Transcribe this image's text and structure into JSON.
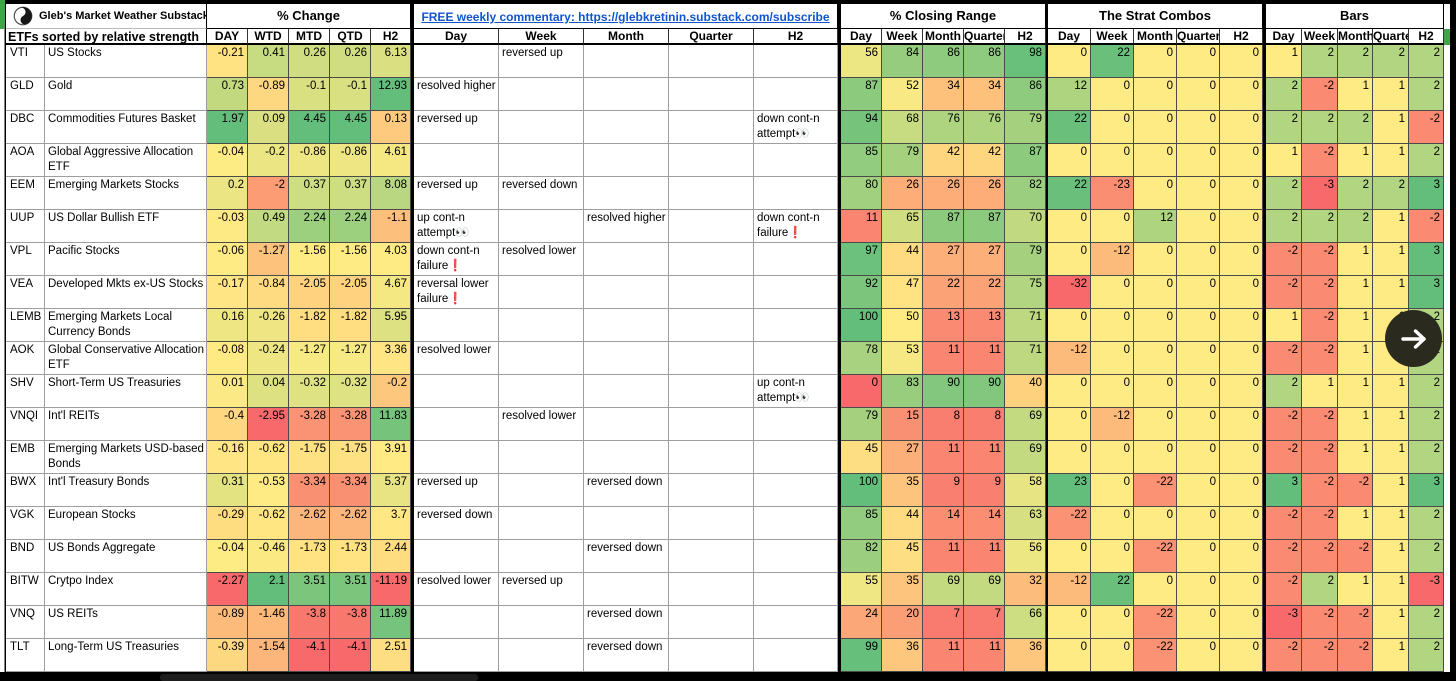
{
  "brand": {
    "title": "Gleb's Market Weather Substack",
    "subtitle": "ETFs sorted by relative strength",
    "logo_icon": "yin-yang-icon"
  },
  "link": {
    "label": "FREE weekly commentary: https://glebkretinin.substack.com/subscribe",
    "color": "#1155CC"
  },
  "nav": {
    "arrow_icon": "right-arrow-icon"
  },
  "heatmap_colors": {
    "low": "#F8696B",
    "mid": "#FFEB84",
    "high": "#63BE7B",
    "corner_green": "#44A248"
  },
  "groups": [
    {
      "id": "pct_change",
      "title": "% Change",
      "columns": [
        "DAY",
        "WTD",
        "MTD",
        "QTD",
        "H2"
      ],
      "scale": "per-column-median"
    },
    {
      "id": "commentary",
      "title": "",
      "columns": [
        "Day",
        "Week",
        "Month",
        "Quarter",
        "H2"
      ]
    },
    {
      "id": "closing_range",
      "title": "% Closing Range",
      "columns": [
        "Day",
        "Week",
        "Month",
        "Quarter",
        "H2"
      ],
      "scale": {
        "min": 0,
        "mid": 50,
        "max": 100
      }
    },
    {
      "id": "strat_combos",
      "title": "The Strat Combos",
      "columns": [
        "Day",
        "Week",
        "Month",
        "Quarter",
        "H2"
      ],
      "scale": {
        "min": -32,
        "mid": 0,
        "max": 23
      }
    },
    {
      "id": "bars",
      "title": "Bars",
      "columns": [
        "Day",
        "Week",
        "Month",
        "Quarter",
        "H2"
      ],
      "scale": {
        "min": -3,
        "mid": 1,
        "max": 3
      }
    }
  ],
  "rows": [
    {
      "ticker": "VTI",
      "name": "US Stocks",
      "pct_change": [
        -0.21,
        0.41,
        0.26,
        0.26,
        6.13
      ],
      "commentary": [
        "",
        "reversed up",
        "",
        "",
        ""
      ],
      "closing_range": [
        56,
        84,
        86,
        86,
        98
      ],
      "strat_combos": [
        0,
        22,
        0,
        0,
        0
      ],
      "bars": [
        1,
        2,
        2,
        2,
        2
      ]
    },
    {
      "ticker": "GLD",
      "name": "Gold",
      "pct_change": [
        0.73,
        -0.89,
        -0.1,
        -0.1,
        12.93
      ],
      "commentary": [
        "resolved higher",
        "",
        "",
        "",
        ""
      ],
      "closing_range": [
        87,
        52,
        34,
        34,
        86
      ],
      "strat_combos": [
        12,
        0,
        0,
        0,
        0
      ],
      "bars": [
        2,
        -2,
        1,
        1,
        2
      ]
    },
    {
      "ticker": "DBC",
      "name": "Commodities Futures Basket",
      "pct_change": [
        1.97,
        0.09,
        4.45,
        4.45,
        0.13
      ],
      "commentary": [
        "reversed up",
        "",
        "",
        "",
        "down cont-n attempt👀"
      ],
      "closing_range": [
        94,
        68,
        76,
        76,
        79
      ],
      "strat_combos": [
        22,
        0,
        0,
        0,
        0
      ],
      "bars": [
        2,
        2,
        2,
        1,
        -2
      ]
    },
    {
      "ticker": "AOA",
      "name": "Global Aggressive Allocation ETF",
      "pct_change": [
        -0.04,
        -0.2,
        -0.86,
        -0.86,
        4.61
      ],
      "commentary": [
        "",
        "",
        "",
        "",
        ""
      ],
      "closing_range": [
        85,
        79,
        42,
        42,
        87
      ],
      "strat_combos": [
        0,
        0,
        0,
        0,
        0
      ],
      "bars": [
        1,
        -2,
        1,
        1,
        2
      ]
    },
    {
      "ticker": "EEM",
      "name": "Emerging Markets Stocks",
      "pct_change": [
        0.2,
        -2,
        0.37,
        0.37,
        8.08
      ],
      "commentary": [
        "reversed up",
        "reversed down",
        "",
        "",
        ""
      ],
      "closing_range": [
        80,
        26,
        26,
        26,
        82
      ],
      "strat_combos": [
        22,
        -23,
        0,
        0,
        0
      ],
      "bars": [
        2,
        -3,
        2,
        2,
        3
      ]
    },
    {
      "ticker": "UUP",
      "name": "US Dollar Bullish ETF",
      "pct_change": [
        -0.03,
        0.49,
        2.24,
        2.24,
        -1.1
      ],
      "commentary": [
        "up cont-n attempt👀",
        "",
        "resolved higher",
        "",
        "down cont-n failure❗"
      ],
      "closing_range": [
        11,
        65,
        87,
        87,
        70
      ],
      "strat_combos": [
        0,
        0,
        12,
        0,
        0
      ],
      "bars": [
        2,
        2,
        2,
        1,
        -2
      ]
    },
    {
      "ticker": "VPL",
      "name": "Pacific Stocks",
      "pct_change": [
        -0.06,
        -1.27,
        -1.56,
        -1.56,
        4.03
      ],
      "commentary": [
        "down cont-n failure❗",
        "resolved lower",
        "",
        "",
        ""
      ],
      "closing_range": [
        97,
        44,
        27,
        27,
        79
      ],
      "strat_combos": [
        0,
        -12,
        0,
        0,
        0
      ],
      "bars": [
        -2,
        -2,
        1,
        1,
        3
      ]
    },
    {
      "ticker": "VEA",
      "name": "Developed Mkts ex-US Stocks",
      "pct_change": [
        -0.17,
        -0.84,
        -2.05,
        -2.05,
        4.67
      ],
      "commentary": [
        "reversal lower failure❗",
        "",
        "",
        "",
        ""
      ],
      "closing_range": [
        92,
        47,
        22,
        22,
        75
      ],
      "strat_combos": [
        -32,
        0,
        0,
        0,
        0
      ],
      "bars": [
        -2,
        -2,
        1,
        1,
        3
      ]
    },
    {
      "ticker": "LEMB",
      "name": "Emerging Markets Local Currency Bonds",
      "pct_change": [
        0.16,
        -0.26,
        -1.82,
        -1.82,
        5.95
      ],
      "commentary": [
        "",
        "",
        "",
        "",
        ""
      ],
      "closing_range": [
        100,
        50,
        13,
        13,
        71
      ],
      "strat_combos": [
        0,
        0,
        0,
        0,
        0
      ],
      "bars": [
        1,
        -2,
        1,
        1,
        2
      ]
    },
    {
      "ticker": "AOK",
      "name": "Global Conservative Allocation ETF",
      "pct_change": [
        -0.08,
        -0.24,
        -1.27,
        -1.27,
        3.36
      ],
      "commentary": [
        "resolved lower",
        "",
        "",
        "",
        ""
      ],
      "closing_range": [
        78,
        53,
        11,
        11,
        71
      ],
      "strat_combos": [
        -12,
        0,
        0,
        0,
        0
      ],
      "bars": [
        -2,
        -2,
        1,
        1,
        2
      ]
    },
    {
      "ticker": "SHV",
      "name": "Short-Term US Treasuries",
      "pct_change": [
        0.01,
        0.04,
        -0.32,
        -0.32,
        -0.2
      ],
      "commentary": [
        "",
        "",
        "",
        "",
        "up cont-n attempt👀"
      ],
      "closing_range": [
        0,
        83,
        90,
        90,
        40
      ],
      "strat_combos": [
        0,
        0,
        0,
        0,
        0
      ],
      "bars": [
        2,
        1,
        1,
        1,
        2
      ]
    },
    {
      "ticker": "VNQI",
      "name": "Int'l REITs",
      "pct_change": [
        -0.4,
        -2.95,
        -3.28,
        -3.28,
        11.83
      ],
      "commentary": [
        "",
        "resolved lower",
        "",
        "",
        ""
      ],
      "closing_range": [
        79,
        15,
        8,
        8,
        69
      ],
      "strat_combos": [
        0,
        -12,
        0,
        0,
        0
      ],
      "bars": [
        -2,
        -2,
        1,
        1,
        2
      ]
    },
    {
      "ticker": "EMB",
      "name": "Emerging Markets USD-based Bonds",
      "pct_change": [
        -0.16,
        -0.62,
        -1.75,
        -1.75,
        3.91
      ],
      "commentary": [
        "",
        "",
        "",
        "",
        ""
      ],
      "closing_range": [
        45,
        27,
        11,
        11,
        69
      ],
      "strat_combos": [
        0,
        0,
        0,
        0,
        0
      ],
      "bars": [
        -2,
        -2,
        1,
        1,
        2
      ]
    },
    {
      "ticker": "BWX",
      "name": "Int'l Treasury Bonds",
      "pct_change": [
        0.31,
        -0.53,
        -3.34,
        -3.34,
        5.37
      ],
      "commentary": [
        "reversed up",
        "",
        "reversed down",
        "",
        ""
      ],
      "closing_range": [
        100,
        35,
        9,
        9,
        58
      ],
      "strat_combos": [
        23,
        0,
        -22,
        0,
        0
      ],
      "bars": [
        3,
        -2,
        -2,
        1,
        3
      ]
    },
    {
      "ticker": "VGK",
      "name": "European Stocks",
      "pct_change": [
        -0.29,
        -0.62,
        -2.62,
        -2.62,
        3.7
      ],
      "commentary": [
        "reversed down",
        "",
        "",
        "",
        ""
      ],
      "closing_range": [
        85,
        44,
        14,
        14,
        63
      ],
      "strat_combos": [
        -22,
        0,
        0,
        0,
        0
      ],
      "bars": [
        -2,
        -2,
        1,
        1,
        2
      ]
    },
    {
      "ticker": "BND",
      "name": "US Bonds Aggregate",
      "pct_change": [
        -0.04,
        -0.46,
        -1.73,
        -1.73,
        2.44
      ],
      "commentary": [
        "",
        "",
        "reversed down",
        "",
        ""
      ],
      "closing_range": [
        82,
        45,
        11,
        11,
        56
      ],
      "strat_combos": [
        0,
        0,
        -22,
        0,
        0
      ],
      "bars": [
        -2,
        -2,
        -2,
        1,
        2
      ]
    },
    {
      "ticker": "BITW",
      "name": "Crytpo Index",
      "pct_change": [
        -2.27,
        2.1,
        3.51,
        3.51,
        -11.19
      ],
      "commentary": [
        "resolved lower",
        "reversed up",
        "",
        "",
        ""
      ],
      "closing_range": [
        55,
        35,
        69,
        69,
        32
      ],
      "strat_combos": [
        -12,
        22,
        0,
        0,
        0
      ],
      "bars": [
        -2,
        2,
        1,
        1,
        -3
      ]
    },
    {
      "ticker": "VNQ",
      "name": "US REITs",
      "pct_change": [
        -0.89,
        -1.46,
        -3.8,
        -3.8,
        11.89
      ],
      "commentary": [
        "",
        "",
        "reversed down",
        "",
        ""
      ],
      "closing_range": [
        24,
        20,
        7,
        7,
        66
      ],
      "strat_combos": [
        0,
        0,
        -22,
        0,
        0
      ],
      "bars": [
        -3,
        -2,
        -2,
        1,
        2
      ]
    },
    {
      "ticker": "TLT",
      "name": "Long-Term US Treasuries",
      "pct_change": [
        -0.39,
        -1.54,
        -4.1,
        -4.1,
        2.51
      ],
      "commentary": [
        "",
        "",
        "reversed down",
        "",
        ""
      ],
      "closing_range": [
        99,
        36,
        11,
        11,
        36
      ],
      "strat_combos": [
        0,
        0,
        -22,
        0,
        0
      ],
      "bars": [
        -2,
        -2,
        -2,
        1,
        2
      ]
    }
  ]
}
